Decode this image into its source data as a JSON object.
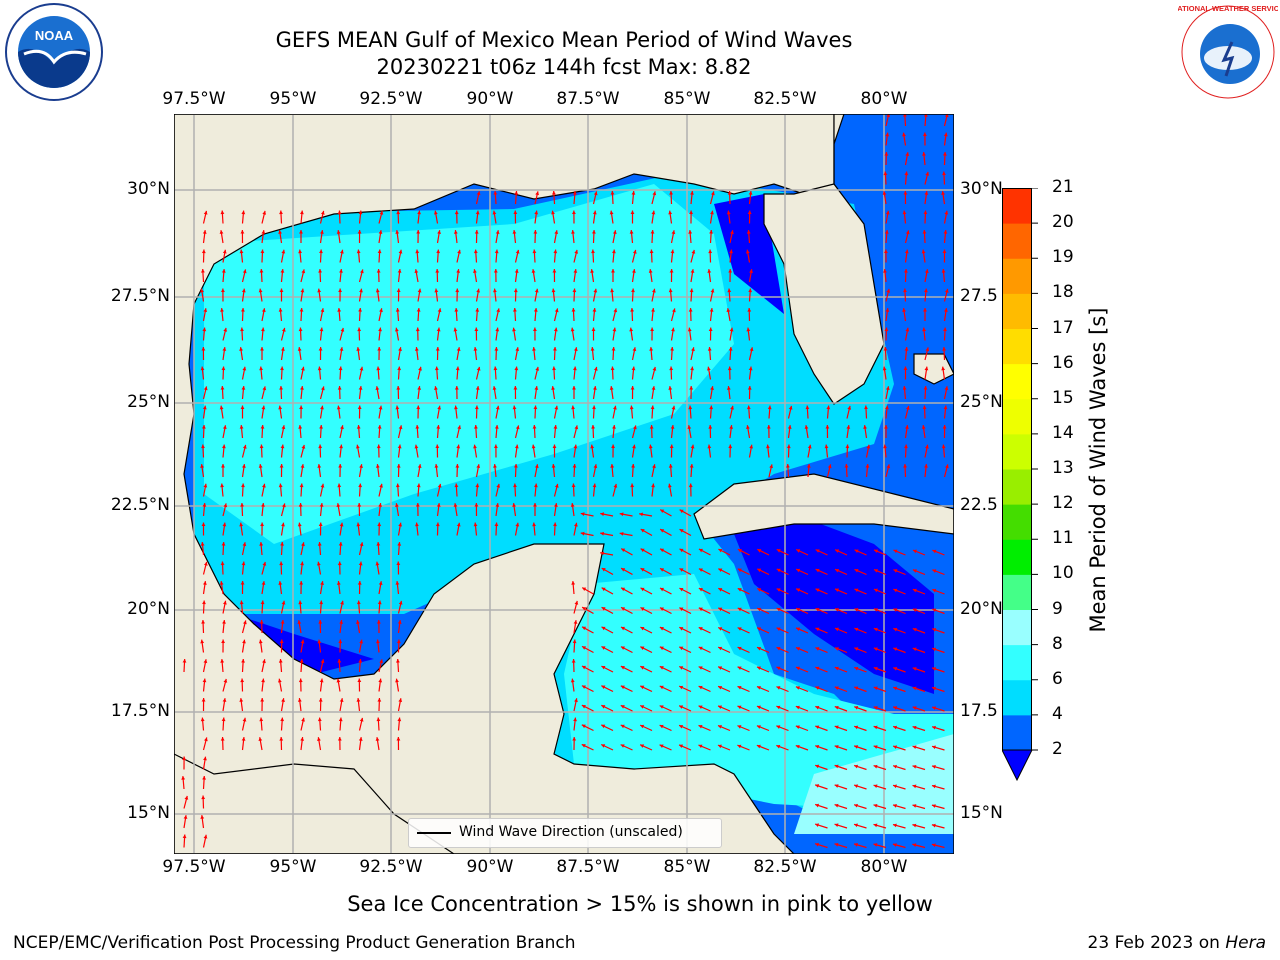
{
  "title": {
    "line1": "GEFS MEAN Gulf of Mexico Mean Period of Wind Waves",
    "line2": "20230221 t06z 144h fcst   Max: 8.82"
  },
  "map": {
    "lon_labels": [
      "97.5°W",
      "95°W",
      "92.5°W",
      "90°W",
      "87.5°W",
      "85°W",
      "82.5°W",
      "80°W"
    ],
    "lat_labels_left": [
      "30°N",
      "27.5°N",
      "25°N",
      "22.5°N",
      "20°N",
      "17.5°N",
      "15°N"
    ],
    "lat_labels_right": [
      "30°N",
      "27.5",
      "25°N",
      "22.5",
      "20°N",
      "17.5",
      "15°N"
    ],
    "land_color": "#efecdc",
    "arrow_color": "#ff0000",
    "grid": true,
    "legend_label": "Wind Wave Direction (unscaled)"
  },
  "colorbar": {
    "title": "Mean Period of Wind Waves [s]",
    "tick_labels": [
      "2",
      "4",
      "6",
      "8",
      "9",
      "10",
      "11",
      "12",
      "13",
      "14",
      "15",
      "16",
      "17",
      "18",
      "19",
      "20",
      "21"
    ],
    "colors": [
      "#0066ff",
      "#00ddff",
      "#33ffff",
      "#99ffff",
      "#44ff88",
      "#00ee00",
      "#44dd00",
      "#99ee00",
      "#ccff00",
      "#eeff00",
      "#ffff00",
      "#ffdd00",
      "#ffbb00",
      "#ff9900",
      "#ff6600",
      "#ff3300",
      "#ff0000"
    ],
    "under_color": "#0000ff"
  },
  "footer": {
    "note": "Sea Ice Concentration > 15% is shown in pink to yellow",
    "org": "NCEP/EMC/Verification Post Processing Product Generation Branch",
    "date": "23 Feb 2023 on",
    "machine": "Hera"
  },
  "logos": {
    "noaa_text": "NOAA",
    "nws_text": "NATIONAL WEATHER SERVICE"
  }
}
